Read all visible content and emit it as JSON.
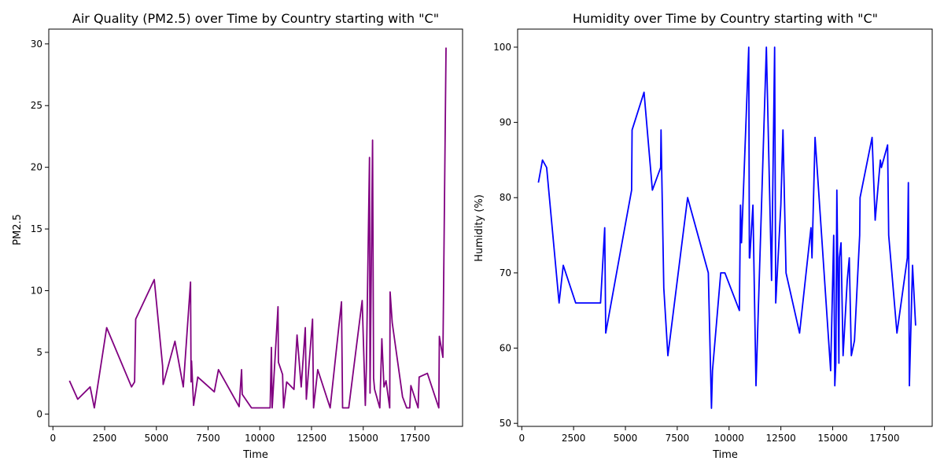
{
  "chart_data": [
    {
      "type": "line",
      "title": "Air Quality (PM2.5) over Time by Country starting with \"C\"",
      "xlabel": "Time",
      "ylabel": "PM2.5",
      "color": "#800080",
      "xlim": [
        -200,
        19800
      ],
      "ylim": [
        -1.0,
        31.2
      ],
      "xticks": [
        0,
        2500,
        5000,
        7500,
        10000,
        12500,
        15000,
        17500
      ],
      "xtick_labels": [
        "0",
        "2500",
        "5000",
        "7500",
        "10000",
        "12500",
        "15000",
        "17500"
      ],
      "yticks": [
        0,
        5,
        10,
        15,
        20,
        25,
        30
      ],
      "ytick_labels": [
        "0",
        "5",
        "10",
        "15",
        "20",
        "25",
        "30"
      ],
      "grid": false,
      "x": [
        800,
        1200,
        1800,
        2000,
        2600,
        3800,
        3950,
        4000,
        4900,
        5300,
        5330,
        5900,
        6300,
        6650,
        6680,
        6700,
        6800,
        7000,
        7800,
        8000,
        9000,
        9120,
        9150,
        9600,
        10500,
        10560,
        10600,
        10880,
        10900,
        11100,
        11150,
        11300,
        11650,
        11800,
        12000,
        12200,
        12250,
        12550,
        12600,
        12800,
        13400,
        13950,
        14000,
        14300,
        14950,
        15100,
        15150,
        15300,
        15330,
        15450,
        15500,
        15550,
        15800,
        15900,
        16000,
        16100,
        16280,
        16300,
        16400,
        16900,
        17100,
        17250,
        17300,
        17650,
        17700,
        18100,
        18650,
        18680,
        18850,
        19000
      ],
      "y": [
        2.7,
        1.2,
        2.2,
        0.5,
        7.0,
        2.2,
        2.6,
        7.7,
        10.9,
        3.9,
        2.4,
        5.9,
        2.2,
        10.7,
        2.6,
        4.3,
        0.7,
        3.0,
        1.8,
        3.6,
        0.6,
        3.6,
        1.6,
        0.5,
        0.5,
        5.4,
        0.5,
        8.7,
        4.2,
        3.2,
        0.5,
        2.6,
        2.0,
        6.4,
        2.2,
        7.0,
        1.2,
        7.7,
        0.5,
        3.6,
        0.5,
        9.1,
        0.5,
        0.5,
        9.2,
        0.7,
        3.7,
        20.8,
        1.7,
        22.2,
        2.9,
        2.0,
        0.5,
        6.1,
        2.2,
        2.7,
        0.5,
        9.9,
        7.4,
        1.4,
        0.5,
        0.5,
        2.3,
        0.5,
        3.0,
        3.3,
        0.5,
        6.3,
        4.6,
        29.7
      ]
    },
    {
      "type": "line",
      "title": "Humidity over Time by Country starting with \"C\"",
      "xlabel": "Time",
      "ylabel": "Humidity (%)",
      "color": "#0000ff",
      "xlim": [
        -200,
        19800
      ],
      "ylim": [
        49.6,
        102.4
      ],
      "xticks": [
        0,
        2500,
        5000,
        7500,
        10000,
        12500,
        15000,
        17500
      ],
      "xtick_labels": [
        "0",
        "2500",
        "5000",
        "7500",
        "10000",
        "12500",
        "15000",
        "17500"
      ],
      "yticks": [
        50,
        60,
        70,
        80,
        90,
        100
      ],
      "ytick_labels": [
        "50",
        "60",
        "70",
        "80",
        "90",
        "100"
      ],
      "grid": false,
      "x": [
        800,
        1000,
        1200,
        1800,
        2000,
        2600,
        3800,
        4000,
        4050,
        4900,
        5300,
        5320,
        5900,
        6300,
        6700,
        6720,
        6750,
        6850,
        7050,
        8000,
        9000,
        9150,
        9200,
        9600,
        9800,
        10500,
        10550,
        10600,
        10950,
        10980,
        11000,
        11150,
        11300,
        11800,
        12050,
        12200,
        12250,
        12500,
        12600,
        12750,
        13400,
        13950,
        14000,
        14150,
        14900,
        15050,
        15100,
        15150,
        15200,
        15300,
        15320,
        15400,
        15500,
        15700,
        15800,
        15900,
        16050,
        16300,
        16320,
        16900,
        17050,
        17300,
        17350,
        17650,
        17700,
        18100,
        18600,
        18650,
        18700,
        18850,
        19000
      ],
      "y": [
        82,
        85,
        84,
        66,
        71,
        66,
        66,
        76,
        62,
        75,
        81,
        89,
        94,
        81,
        84,
        89,
        84,
        68,
        59,
        80,
        70,
        52,
        57,
        70,
        70,
        65,
        79,
        74,
        100,
        72,
        72,
        79,
        55,
        100,
        69,
        100,
        66,
        79,
        89,
        70,
        62,
        76,
        72,
        88,
        57,
        75,
        55,
        58,
        81,
        58,
        72,
        74,
        59,
        69,
        72,
        59,
        61,
        75,
        80,
        88,
        77,
        85,
        84,
        87,
        75,
        62,
        72,
        82,
        55,
        71,
        63
      ]
    }
  ]
}
